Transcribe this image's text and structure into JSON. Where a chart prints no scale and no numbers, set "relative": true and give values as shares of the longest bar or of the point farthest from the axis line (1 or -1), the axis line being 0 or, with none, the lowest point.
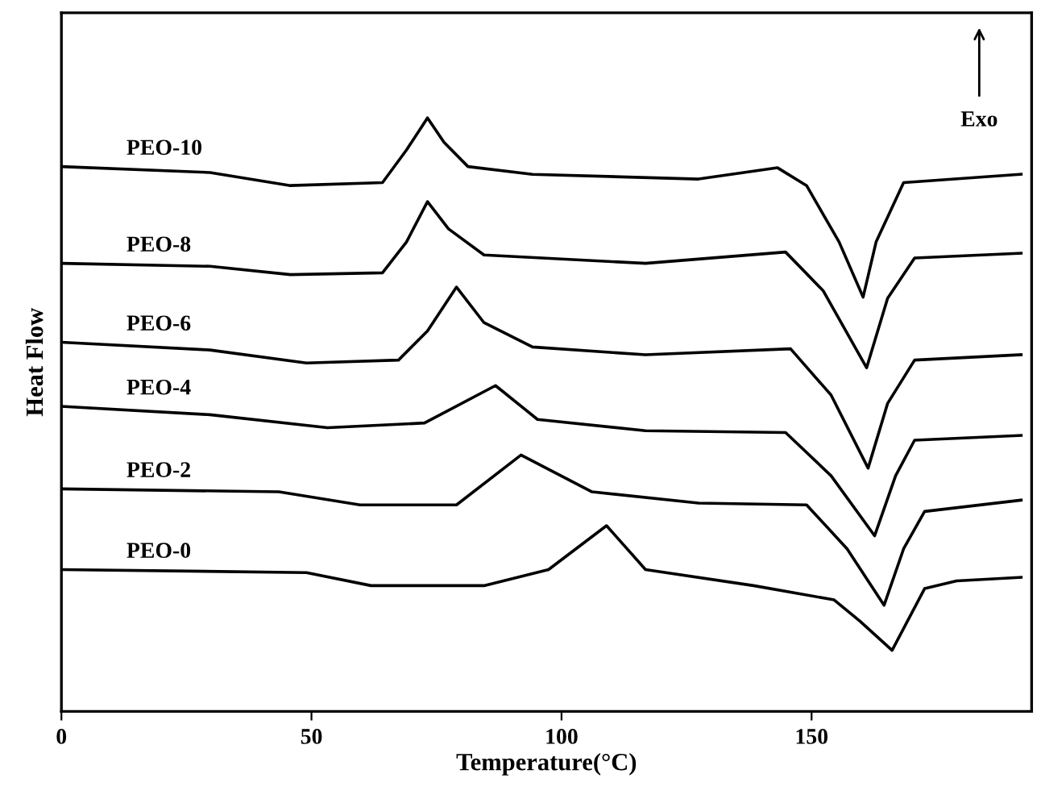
{
  "chart_data": {
    "type": "line",
    "relative": true,
    "xlabel": "Temperature(°C)",
    "ylabel": "Heat Flow",
    "xlim": [
      0,
      194
    ],
    "xticks": [
      0,
      50,
      100,
      150
    ],
    "grid": false,
    "marker": "none",
    "line_style": "solid",
    "annotations": [
      "Exo"
    ],
    "series": [
      {
        "name": "PEO-10",
        "color": "#000000",
        "x": [
          0,
          29.7,
          45.8,
          64.2,
          69.0,
          73.2,
          76.5,
          81.3,
          94.2,
          127.4,
          143.2,
          149.0,
          155.5,
          160.3,
          162.9,
          168.4,
          191.9
        ],
        "values": [
          0.918,
          0.908,
          0.886,
          0.891,
          0.946,
          1.0,
          0.959,
          0.918,
          0.905,
          0.897,
          0.916,
          0.886,
          0.791,
          0.698,
          0.791,
          0.891,
          0.905
        ]
      },
      {
        "name": "PEO-8",
        "color": "#000000",
        "x": [
          0,
          29.7,
          45.8,
          64.2,
          69.0,
          73.2,
          77.4,
          84.5,
          116.8,
          144.8,
          152.3,
          161.0,
          165.2,
          170.6,
          191.9
        ],
        "values": [
          0.755,
          0.75,
          0.736,
          0.739,
          0.791,
          0.859,
          0.813,
          0.769,
          0.755,
          0.774,
          0.709,
          0.579,
          0.696,
          0.764,
          0.772
        ]
      },
      {
        "name": "PEO-6",
        "color": "#000000",
        "x": [
          0,
          29.7,
          49.0,
          67.4,
          73.2,
          79.0,
          84.5,
          94.2,
          116.8,
          145.8,
          153.9,
          161.3,
          165.2,
          170.6,
          191.9
        ],
        "values": [
          0.622,
          0.609,
          0.587,
          0.592,
          0.641,
          0.715,
          0.655,
          0.614,
          0.601,
          0.611,
          0.533,
          0.41,
          0.519,
          0.592,
          0.601
        ]
      },
      {
        "name": "PEO-4",
        "color": "#000000",
        "x": [
          0,
          29.7,
          53.2,
          72.6,
          86.8,
          95.2,
          116.8,
          144.8,
          153.9,
          162.6,
          166.8,
          170.6,
          191.9
        ],
        "values": [
          0.514,
          0.5,
          0.478,
          0.486,
          0.549,
          0.492,
          0.473,
          0.47,
          0.397,
          0.296,
          0.397,
          0.457,
          0.465
        ]
      },
      {
        "name": "PEO-2",
        "color": "#000000",
        "x": [
          0,
          43.5,
          59.7,
          79.0,
          91.9,
          106.1,
          127.4,
          149.0,
          157.1,
          164.5,
          168.4,
          172.6,
          191.9
        ],
        "values": [
          0.375,
          0.37,
          0.348,
          0.348,
          0.432,
          0.37,
          0.351,
          0.348,
          0.274,
          0.179,
          0.274,
          0.337,
          0.356
        ]
      },
      {
        "name": "PEO-0",
        "color": "#000000",
        "x": [
          0,
          49.0,
          61.9,
          84.5,
          97.4,
          109.0,
          116.8,
          138.4,
          154.5,
          159.7,
          166.1,
          172.6,
          179.0,
          191.9
        ],
        "values": [
          0.239,
          0.234,
          0.212,
          0.212,
          0.239,
          0.313,
          0.239,
          0.212,
          0.188,
          0.152,
          0.103,
          0.207,
          0.22,
          0.226
        ]
      }
    ]
  }
}
